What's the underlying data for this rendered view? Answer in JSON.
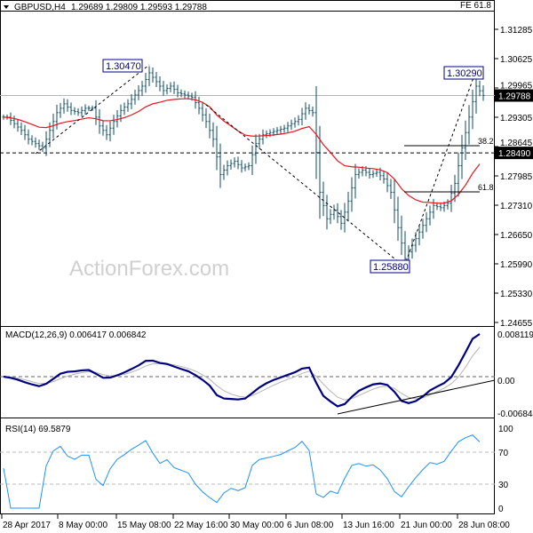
{
  "header": {
    "symbol": "GBPUSD,H4",
    "ohlc": "1.29689 1.29809 1.29593 1.29788",
    "indicator_label": "FE 61.8"
  },
  "watermark": "ActionForex.com",
  "colors": {
    "bars": "#0b4a68",
    "ma": "#e8141c",
    "macd": "#000080",
    "signal": "#b4b4b4",
    "rsi": "#1e90ff",
    "label_box": "#00008b"
  },
  "chart_data": [
    {
      "type": "ohlc",
      "title": "GBPUSD,H4",
      "y_ticks": [
        "1.31285",
        "1.30625",
        "1.29965",
        "1.29305",
        "1.28645",
        "1.27985",
        "1.27310",
        "1.26650",
        "1.25990",
        "1.25330",
        "1.24655"
      ],
      "ylim": [
        1.24655,
        1.31285
      ],
      "x_ticks": [
        "28 Apr 2017",
        "8 May 00:00",
        "15 May 08:00",
        "22 May 16:00",
        "30 May 00:00",
        "6 Jun 08:00",
        "13 Jun 16:00",
        "21 Jun 00:00",
        "28 Jun 08:00"
      ],
      "closes": [
        1.293,
        1.2915,
        1.29,
        1.288,
        1.287,
        1.286,
        1.29,
        1.294,
        1.296,
        1.2945,
        1.294,
        1.295,
        1.295,
        1.291,
        1.289,
        1.292,
        1.2945,
        1.296,
        1.298,
        1.3,
        1.303,
        1.301,
        1.299,
        1.3,
        1.2985,
        1.298,
        1.2975,
        1.295,
        1.292,
        1.288,
        1.28,
        1.282,
        1.283,
        1.2815,
        1.282,
        1.287,
        1.289,
        1.2895,
        1.29,
        1.2905,
        1.2915,
        1.2925,
        1.295,
        1.294,
        1.276,
        1.27,
        1.272,
        1.269,
        1.274,
        1.28,
        1.281,
        1.28,
        1.2805,
        1.279,
        1.276,
        1.268,
        1.261,
        1.264,
        1.267,
        1.27,
        1.273,
        1.2725,
        1.2735,
        1.278,
        1.286,
        1.293,
        1.3,
        1.2979
      ],
      "current_price": "1.29788",
      "level_label": "1.28490",
      "annotations": {
        "high1": "1.30470",
        "high2": "1.30290",
        "low1": "1.25880",
        "fib_382": "38.2",
        "fib_618": "61.8"
      }
    },
    {
      "type": "line",
      "title": "MACD(12,26,9) 0.006417 0.006842",
      "y_ticks": [
        "0.008119",
        "0.00",
        "-0.006844"
      ],
      "ylim": [
        -0.006844,
        0.008119
      ]
    },
    {
      "type": "line",
      "title": "RSI(14) 69.5879",
      "y_ticks": [
        "100",
        "70",
        "30",
        "0"
      ],
      "ylim": [
        0,
        100
      ]
    }
  ]
}
